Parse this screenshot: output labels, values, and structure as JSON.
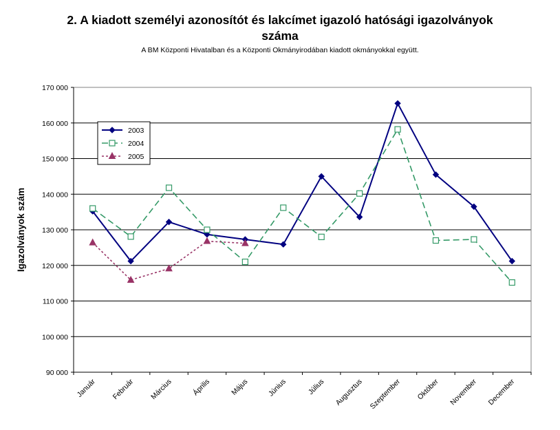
{
  "chart_data": {
    "type": "line",
    "title_line1": "2. A kiadott személyi azonosítót és lakcímet igazoló hatósági igazolványok",
    "title_line2": "száma",
    "subtitle": "A BM Központi Hivatalban és a Központi Okmányirodában kiadott okmányokkal együtt.",
    "ylabel": "Igazolványok szám",
    "xlabel": "",
    "categories": [
      "Január",
      "Február",
      "Március",
      "Április",
      "Május",
      "Június",
      "Július",
      "Augusztus",
      "Szeptember",
      "Október",
      "November",
      "December"
    ],
    "ylim": [
      90000,
      170000
    ],
    "yticks": [
      90000,
      100000,
      110000,
      120000,
      130000,
      140000,
      150000,
      160000,
      170000
    ],
    "ytick_labels": [
      "90 000",
      "100 000",
      "110 000",
      "120 000",
      "130 000",
      "140 000",
      "150 000",
      "160 000",
      "170 000"
    ],
    "grid": true,
    "legend_position": "top-left",
    "series": [
      {
        "name": "2003",
        "color": "#000080",
        "dash": "solid",
        "marker": "diamond-filled",
        "values": [
          135200,
          121200,
          132200,
          128700,
          127300,
          125900,
          145000,
          133600,
          165500,
          145500,
          136500,
          121200
        ]
      },
      {
        "name": "2004",
        "color": "#339966",
        "dash": "dashed",
        "marker": "square-open",
        "values": [
          136000,
          128100,
          141800,
          130000,
          121000,
          136200,
          128000,
          140200,
          158200,
          127000,
          127300,
          115200
        ]
      },
      {
        "name": "2005",
        "color": "#993366",
        "dash": "dotted",
        "marker": "triangle-filled",
        "values": [
          126400,
          115900,
          119100,
          126800,
          126200,
          null,
          null,
          null,
          null,
          null,
          null,
          null
        ]
      }
    ]
  }
}
